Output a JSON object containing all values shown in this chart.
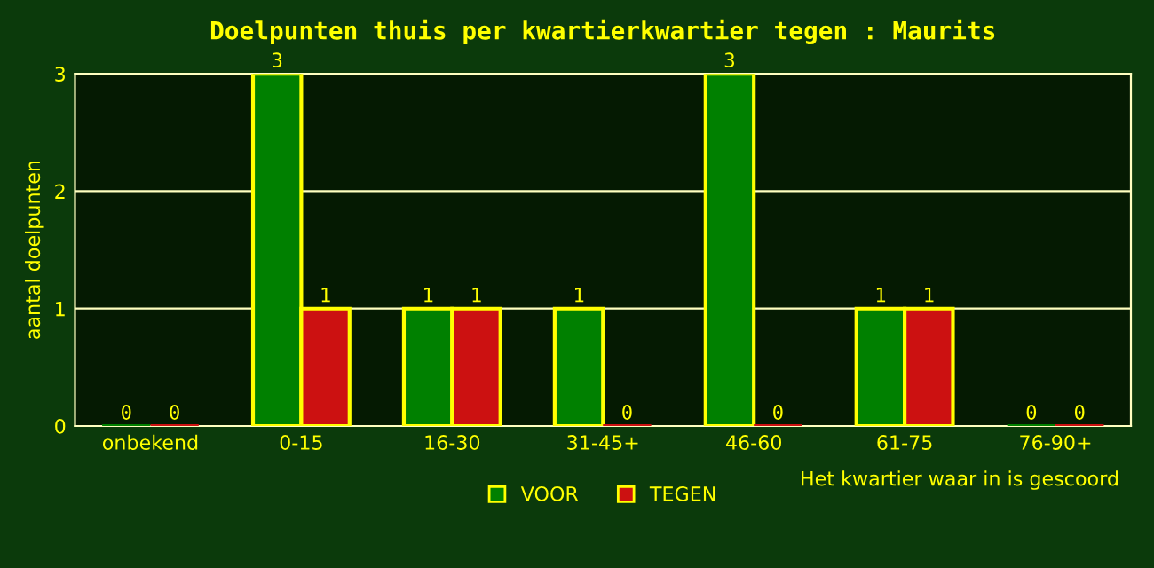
{
  "chart_data": {
    "type": "bar",
    "title": "Doelpunten thuis per kwartierkwartier tegen : Maurits",
    "xlabel": "Het kwartier waar in is gescoord",
    "ylabel": "aantal doelpunten",
    "categories": [
      "onbekend",
      "0-15",
      "16-30",
      "31-45+",
      "46-60",
      "61-75",
      "76-90+"
    ],
    "series": [
      {
        "name": "VOOR",
        "color": "#008000",
        "values": [
          0,
          3,
          1,
          1,
          3,
          1,
          0
        ]
      },
      {
        "name": "TEGEN",
        "color": "#cc1111",
        "values": [
          0,
          1,
          1,
          0,
          0,
          1,
          0
        ]
      }
    ],
    "ylim": [
      0,
      3
    ],
    "yticks": [
      0,
      1,
      2,
      3
    ],
    "grid": "y",
    "legend": "bottom",
    "data_labels": true
  }
}
